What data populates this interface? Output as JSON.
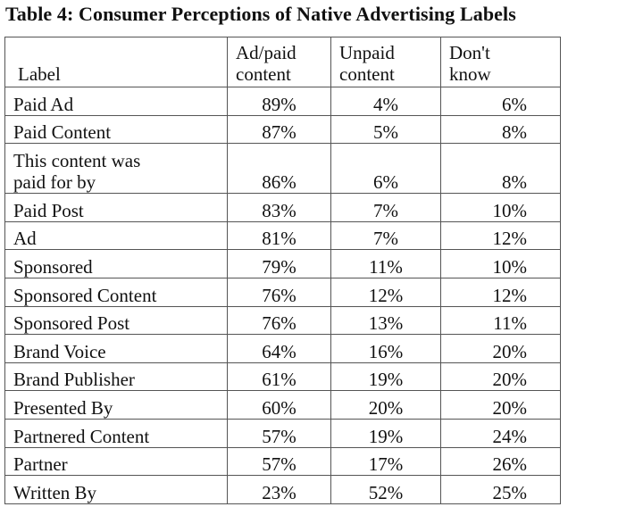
{
  "title": "Table 4: Consumer Perceptions of Native Advertising Labels",
  "headers": {
    "label": "Label",
    "ad_paid_line1": "Ad/paid",
    "ad_paid_line2": "content",
    "unpaid_line1": "Unpaid",
    "unpaid_line2": "content",
    "dontknow_line1": "Don't",
    "dontknow_line2": "know"
  },
  "rows": [
    {
      "label": "Paid Ad",
      "ad": "89%",
      "unpaid": "4%",
      "dk": "6%"
    },
    {
      "label": "Paid Content",
      "ad": "87%",
      "unpaid": "5%",
      "dk": "8%"
    },
    {
      "label_line1": "This content was",
      "label_line2": "paid for by",
      "ad": "86%",
      "unpaid": "6%",
      "dk": "8%"
    },
    {
      "label": "Paid Post",
      "ad": "83%",
      "unpaid": "7%",
      "dk": "10%"
    },
    {
      "label": "Ad",
      "ad": "81%",
      "unpaid": "7%",
      "dk": "12%"
    },
    {
      "label": "Sponsored",
      "ad": "79%",
      "unpaid": "11%",
      "dk": "10%"
    },
    {
      "label": "Sponsored Content",
      "ad": "76%",
      "unpaid": "12%",
      "dk": "12%"
    },
    {
      "label": "Sponsored Post",
      "ad": "76%",
      "unpaid": "13%",
      "dk": "11%"
    },
    {
      "label": "Brand Voice",
      "ad": "64%",
      "unpaid": "16%",
      "dk": "20%"
    },
    {
      "label": "Brand Publisher",
      "ad": "61%",
      "unpaid": "19%",
      "dk": "20%"
    },
    {
      "label": "Presented By",
      "ad": "60%",
      "unpaid": "20%",
      "dk": "20%"
    },
    {
      "label": "Partnered Content",
      "ad": "57%",
      "unpaid": "19%",
      "dk": "24%"
    },
    {
      "label": "Partner",
      "ad": "57%",
      "unpaid": "17%",
      "dk": "26%"
    },
    {
      "label": "Written By",
      "ad": "23%",
      "unpaid": "52%",
      "dk": "25%"
    }
  ]
}
